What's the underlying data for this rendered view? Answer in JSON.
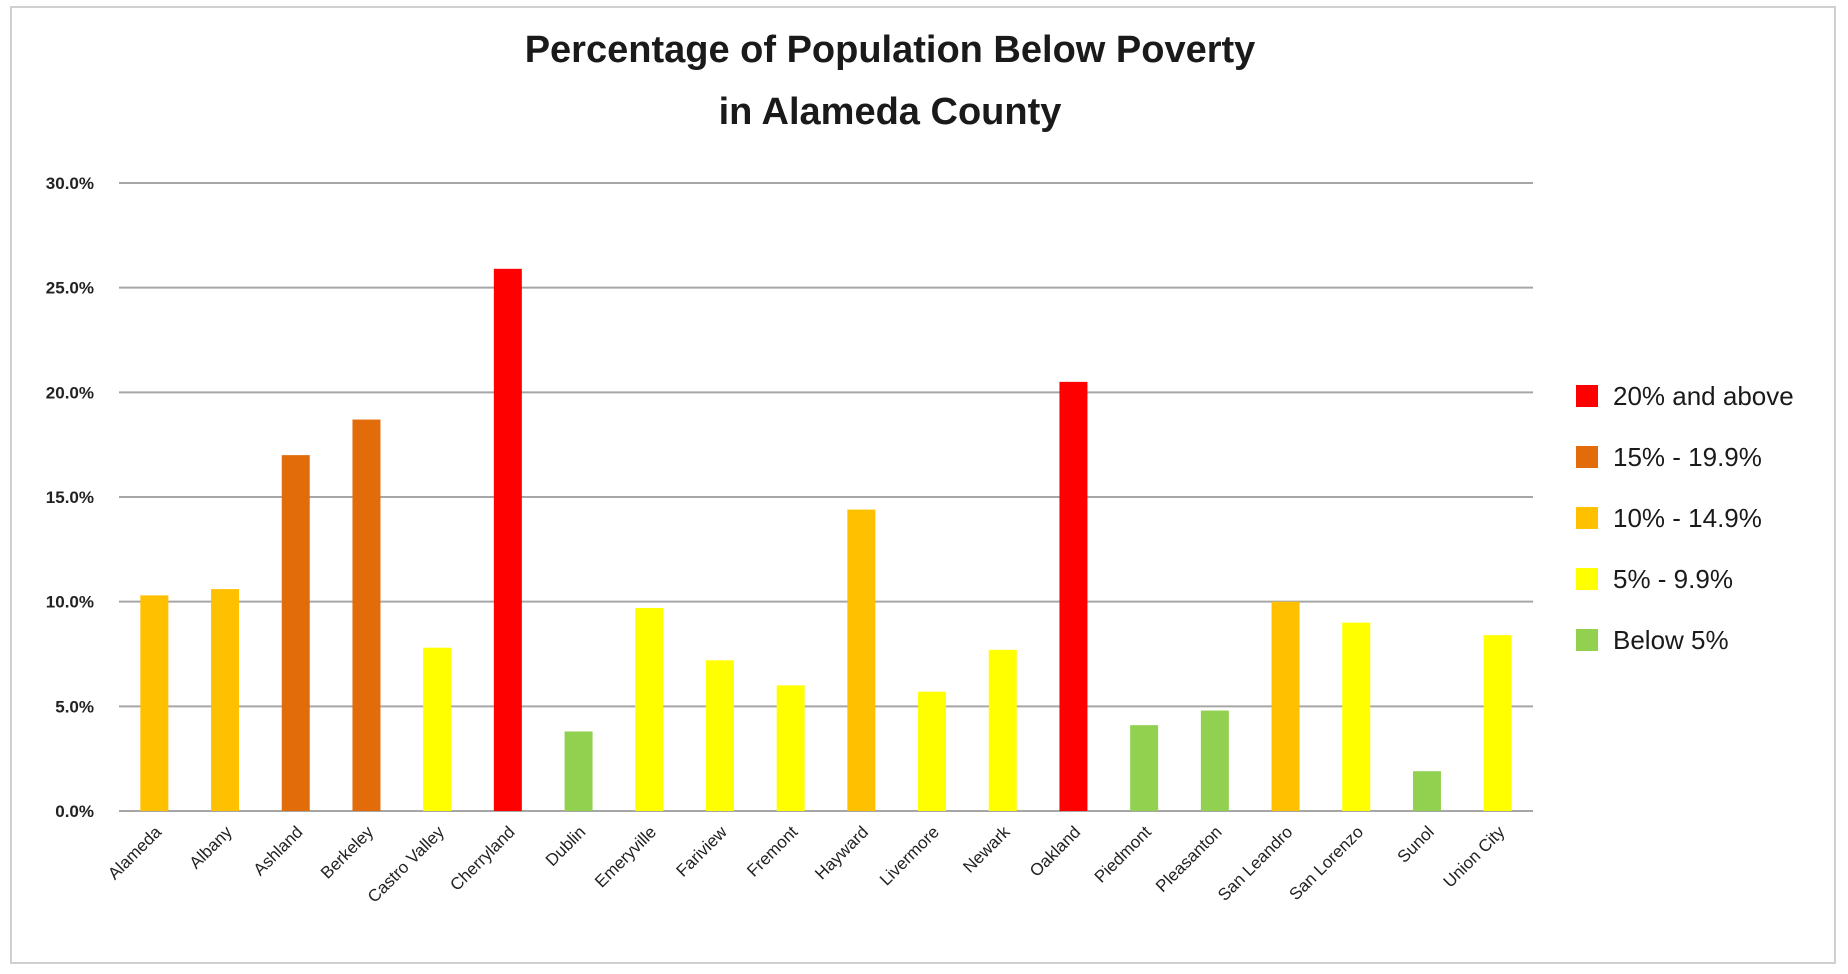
{
  "chart_data": {
    "type": "bar",
    "title": "Percentage of Population Below Poverty",
    "subtitle": "in Alameda County",
    "xlabel": "",
    "ylabel": "",
    "ylim": [
      0,
      30
    ],
    "y_ticks": [
      "0.0%",
      "5.0%",
      "10.0%",
      "15.0%",
      "20.0%",
      "25.0%",
      "30.0%"
    ],
    "y_tick_values": [
      0,
      5,
      10,
      15,
      20,
      25,
      30
    ],
    "grid": true,
    "legend_position": "right",
    "categories": [
      "Alameda",
      "Albany",
      "Ashland",
      "Berkeley",
      "Castro Valley",
      "Cherryland",
      "Dublin",
      "Emeryville",
      "Fariview",
      "Fremont",
      "Hayward",
      "Livermore",
      "Newark",
      "Oakland",
      "Piedmont",
      "Pleasanton",
      "San Leandro",
      "San Lorenzo",
      "Sunol",
      "Union City"
    ],
    "values": [
      10.3,
      10.6,
      17.0,
      18.7,
      7.8,
      25.9,
      3.8,
      9.7,
      7.2,
      6.0,
      14.4,
      5.7,
      7.7,
      20.5,
      4.1,
      4.8,
      10.0,
      9.0,
      1.9,
      8.4
    ],
    "bar_groups": [
      2,
      2,
      1,
      1,
      3,
      0,
      4,
      3,
      3,
      3,
      2,
      3,
      3,
      0,
      4,
      4,
      2,
      3,
      4,
      3
    ],
    "legend": [
      {
        "label": "20% and above",
        "color": "#ff0000"
      },
      {
        "label": "15% - 19.9%",
        "color": "#e36c0a"
      },
      {
        "label": "10% - 14.9%",
        "color": "#ffc000"
      },
      {
        "label": "5% - 9.9%",
        "color": "#ffff00"
      },
      {
        "label": "Below 5%",
        "color": "#92d050"
      }
    ]
  }
}
